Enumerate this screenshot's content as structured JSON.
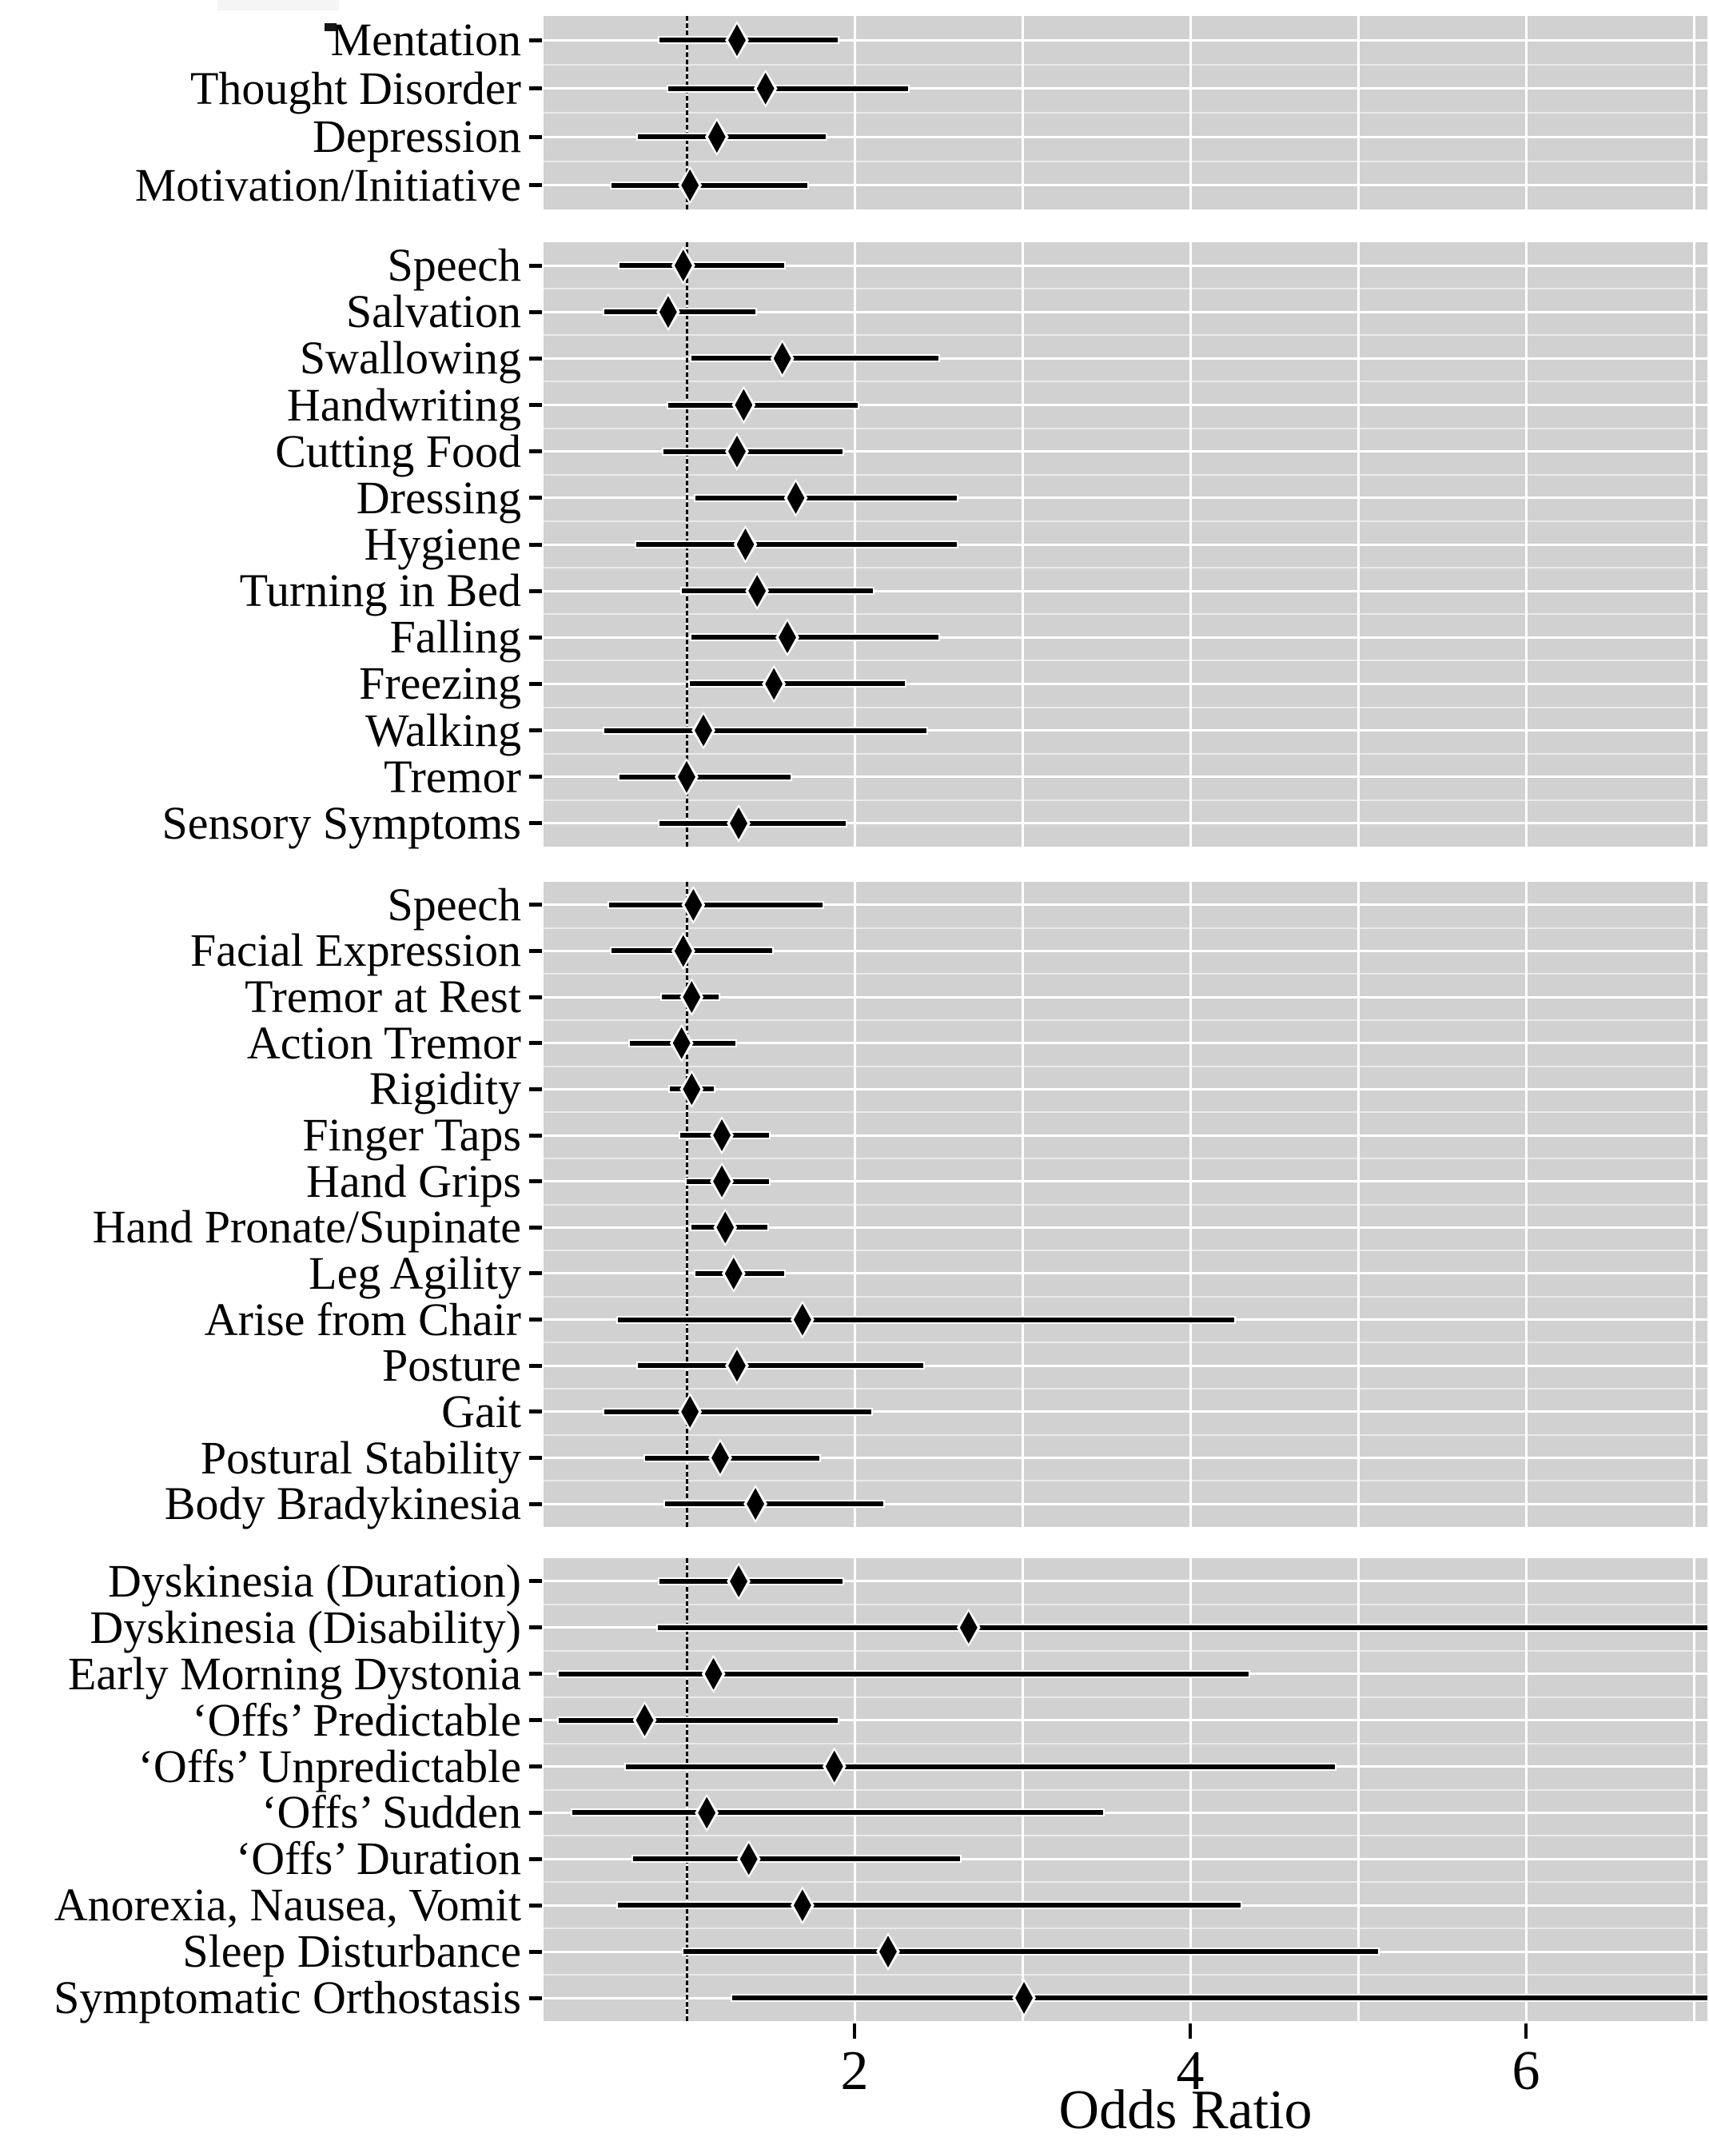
{
  "chart_data": {
    "type": "scatter",
    "subtype": "forest-plot",
    "title": "",
    "xlabel": "Odds Ratio",
    "ylabel": "",
    "x_ticks": [
      2,
      4,
      6
    ],
    "xlim": [
      0.15,
      7.08
    ],
    "reference_line_or": 1,
    "grid": "on",
    "legend": "none",
    "marker": "diamond",
    "colors": {
      "marker": "#000000",
      "ci_line": "#000000",
      "panel_background": "#d1d1d1",
      "gridline": "#ffffff",
      "reference_line": "#000000",
      "text": "#000000"
    },
    "panels": [
      {
        "rows": [
          {
            "label": "Mentation",
            "or": 1.3,
            "lo": 0.84,
            "hi": 1.9
          },
          {
            "label": "Thought Disorder",
            "or": 1.47,
            "lo": 0.89,
            "hi": 2.32
          },
          {
            "label": "Depression",
            "or": 1.18,
            "lo": 0.71,
            "hi": 1.83
          },
          {
            "label": "Motivation/Initiative",
            "or": 1.02,
            "lo": 0.55,
            "hi": 1.72
          }
        ]
      },
      {
        "rows": [
          {
            "label": "Speech",
            "or": 0.98,
            "lo": 0.6,
            "hi": 1.58
          },
          {
            "label": "Salvation",
            "or": 0.89,
            "lo": 0.51,
            "hi": 1.41
          },
          {
            "label": "Swallowing",
            "or": 1.57,
            "lo": 1.03,
            "hi": 2.5
          },
          {
            "label": "Handwriting",
            "or": 1.34,
            "lo": 0.89,
            "hi": 2.02
          },
          {
            "label": "Cutting Food",
            "or": 1.3,
            "lo": 0.86,
            "hi": 1.93
          },
          {
            "label": "Dressing",
            "or": 1.65,
            "lo": 1.05,
            "hi": 2.61
          },
          {
            "label": "Hygiene",
            "or": 1.35,
            "lo": 0.7,
            "hi": 2.61
          },
          {
            "label": "Turning in Bed",
            "or": 1.42,
            "lo": 0.97,
            "hi": 2.11
          },
          {
            "label": "Falling",
            "or": 1.6,
            "lo": 1.03,
            "hi": 2.5
          },
          {
            "label": "Freezing",
            "or": 1.52,
            "lo": 1.02,
            "hi": 2.3
          },
          {
            "label": "Walking",
            "or": 1.1,
            "lo": 0.51,
            "hi": 2.43
          },
          {
            "label": "Tremor",
            "or": 1.0,
            "lo": 0.6,
            "hi": 1.62
          },
          {
            "label": "Sensory Symptoms",
            "or": 1.31,
            "lo": 0.84,
            "hi": 1.95
          }
        ]
      },
      {
        "rows": [
          {
            "label": "Speech",
            "or": 1.04,
            "lo": 0.54,
            "hi": 1.81
          },
          {
            "label": "Facial Expression",
            "or": 0.98,
            "lo": 0.55,
            "hi": 1.51
          },
          {
            "label": "Tremor at Rest",
            "or": 1.03,
            "lo": 0.85,
            "hi": 1.19
          },
          {
            "label": "Action Tremor",
            "or": 0.97,
            "lo": 0.66,
            "hi": 1.29
          },
          {
            "label": "Rigidity",
            "or": 1.03,
            "lo": 0.9,
            "hi": 1.16
          },
          {
            "label": "Finger Taps",
            "or": 1.21,
            "lo": 0.96,
            "hi": 1.49
          },
          {
            "label": "Hand Grips",
            "or": 1.21,
            "lo": 1.0,
            "hi": 1.49
          },
          {
            "label": "Hand Pronate/Supinate",
            "or": 1.23,
            "lo": 1.03,
            "hi": 1.48
          },
          {
            "label": "Leg Agility",
            "or": 1.28,
            "lo": 1.05,
            "hi": 1.58
          },
          {
            "label": "Arise from Chair",
            "or": 1.69,
            "lo": 0.59,
            "hi": 4.26
          },
          {
            "label": "Posture",
            "or": 1.3,
            "lo": 0.71,
            "hi": 2.41
          },
          {
            "label": "Gait",
            "or": 1.02,
            "lo": 0.51,
            "hi": 2.1
          },
          {
            "label": "Postural Stability",
            "or": 1.2,
            "lo": 0.75,
            "hi": 1.79
          },
          {
            "label": "Body Bradykinesia",
            "or": 1.41,
            "lo": 0.87,
            "hi": 2.17
          }
        ]
      },
      {
        "rows": [
          {
            "label": "Dyskinesia (Duration)",
            "or": 1.31,
            "lo": 0.84,
            "hi": 1.93
          },
          {
            "label": "Dyskinesia (Disability)",
            "or": 2.68,
            "lo": 0.83,
            "hi": 7.2,
            "hi_clipped": true
          },
          {
            "label": "Early Morning Dystonia",
            "or": 1.16,
            "lo": 0.24,
            "hi": 4.35
          },
          {
            "label": "‘Offs’ Predictable",
            "or": 0.75,
            "lo": 0.24,
            "hi": 1.9
          },
          {
            "label": "‘Offs’ Unpredictable",
            "or": 1.88,
            "lo": 0.64,
            "hi": 4.86
          },
          {
            "label": "‘Offs’ Sudden",
            "or": 1.12,
            "lo": 0.32,
            "hi": 3.48
          },
          {
            "label": "‘Offs’ Duration",
            "or": 1.37,
            "lo": 0.68,
            "hi": 2.63
          },
          {
            "label": "Anorexia, Nausea, Vomit",
            "or": 1.69,
            "lo": 0.59,
            "hi": 4.3
          },
          {
            "label": "Sleep Disturbance",
            "or": 2.2,
            "lo": 0.98,
            "hi": 5.12
          },
          {
            "label": "Symptomatic Orthostasis",
            "or": 3.01,
            "lo": 1.27,
            "hi": 7.2,
            "hi_clipped": true
          }
        ]
      }
    ]
  }
}
